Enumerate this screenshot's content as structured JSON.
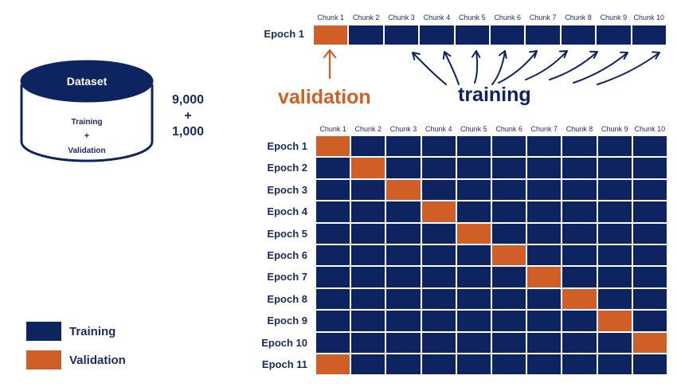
{
  "dataset": {
    "title": "Dataset",
    "line1": "Training",
    "plus": "+",
    "line2": "Validation"
  },
  "counts": {
    "training": "9,000",
    "plus": "+",
    "validation": "1,000"
  },
  "top": {
    "epoch_label": "Epoch 1",
    "validation_word": "validation",
    "training_word": "training",
    "validation_chunk": 1
  },
  "chunks": [
    "Chunk 1",
    "Chunk 2",
    "Chunk 3",
    "Chunk 4",
    "Chunk 5",
    "Chunk 6",
    "Chunk 7",
    "Chunk 8",
    "Chunk 9",
    "Chunk 10"
  ],
  "grid": {
    "epochs": [
      "Epoch 1",
      "Epoch 2",
      "Epoch 3",
      "Epoch 4",
      "Epoch 5",
      "Epoch 6",
      "Epoch 7",
      "Epoch 8",
      "Epoch 9",
      "Epoch 10",
      "Epoch 11"
    ],
    "validation_chunk_per_epoch": [
      1,
      2,
      3,
      4,
      5,
      6,
      7,
      8,
      9,
      10,
      1
    ]
  },
  "legend": {
    "training": "Training",
    "validation": "Validation"
  },
  "colors": {
    "training": "#0d2461",
    "validation": "#cf5f26",
    "text": "#1b2a5c"
  }
}
